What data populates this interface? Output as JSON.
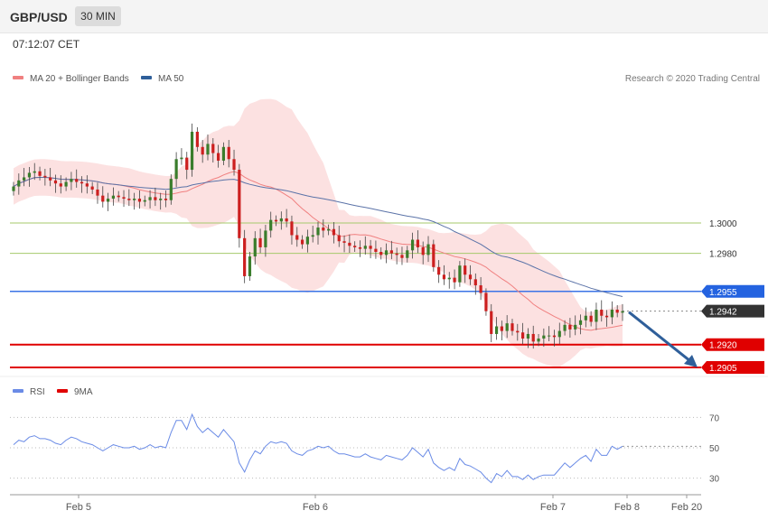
{
  "header": {
    "symbol": "GBP/USD",
    "timeframe": "30 MIN",
    "time": "07:12:07 CET"
  },
  "legend": {
    "ma20_label": "MA 20 + Bollinger Bands",
    "ma50_label": "MA 50",
    "credit": "Research © 2020 Trading Central",
    "rsi_label": "RSI",
    "ma9_label": "9MA"
  },
  "colors": {
    "up": "#3a7d2c",
    "down": "#cc1f1f",
    "band": "#fcdcdc",
    "ma20": "#f08080",
    "ma50": "#5b73a8",
    "support": "#e00000",
    "pivot": "#3b73e6",
    "resistance": "#a5c96b",
    "rsi": "#6a8be6",
    "arrow": "#2f5f9a"
  },
  "chart_data": {
    "type": "candlestick",
    "x_ticks": [
      "Feb 5",
      "Feb 6",
      "Feb 7",
      "Feb 8",
      "Feb 20"
    ],
    "y_range": [
      1.2897,
      1.304
    ],
    "levels": [
      {
        "value": 1.3,
        "label": "1.3000",
        "kind": "resistance"
      },
      {
        "value": 1.298,
        "label": "1.2980",
        "kind": "resistance"
      },
      {
        "value": 1.2955,
        "label": "1.2955",
        "kind": "pivot"
      },
      {
        "value": 1.2942,
        "label": "1.2942",
        "kind": "last"
      },
      {
        "value": 1.292,
        "label": "1.2920",
        "kind": "support"
      },
      {
        "value": 1.2905,
        "label": "1.2905",
        "kind": "support"
      }
    ],
    "close": [
      1.3024,
      1.3028,
      1.303,
      1.3033,
      1.3034,
      1.3031,
      1.303,
      1.3028,
      1.3026,
      1.3024,
      1.3027,
      1.3029,
      1.3027,
      1.3026,
      1.3024,
      1.3022,
      1.3018,
      1.3014,
      1.3016,
      1.3018,
      1.3017,
      1.3016,
      1.3015,
      1.3016,
      1.3014,
      1.3015,
      1.3017,
      1.3015,
      1.3016,
      1.3015,
      1.3029,
      1.3042,
      1.3043,
      1.3035,
      1.306,
      1.305,
      1.3045,
      1.3052,
      1.3046,
      1.3041,
      1.305,
      1.3042,
      1.3035,
      1.299,
      1.2965,
      1.2978,
      1.299,
      1.2984,
      1.2995,
      1.3002,
      1.3001,
      1.3003,
      1.3001,
      1.2992,
      1.2989,
      1.2986,
      1.2991,
      1.2992,
      1.2997,
      1.2995,
      1.2996,
      1.2992,
      1.2988,
      1.2987,
      1.2985,
      1.2984,
      1.2983,
      1.2985,
      1.2983,
      1.2981,
      1.2979,
      1.2982,
      1.298,
      1.2979,
      1.2977,
      1.2982,
      1.2989,
      1.2984,
      1.2979,
      1.2986,
      1.2971,
      1.2966,
      1.2963,
      1.2964,
      1.2961,
      1.2972,
      1.2966,
      1.2963,
      1.2959,
      1.2954,
      1.2942,
      1.2927,
      1.2932,
      1.2929,
      1.2934,
      1.2929,
      1.2928,
      1.2924,
      1.2927,
      1.2922,
      1.2924,
      1.2926,
      1.2926,
      1.2925,
      1.2929,
      1.2933,
      1.293,
      1.2933,
      1.2936,
      1.2939,
      1.2935,
      1.2943,
      1.2939,
      1.2938,
      1.2943,
      1.2941,
      1.2942
    ],
    "bands_note": "MA 20 with Bollinger Bands and MA 50 overlays",
    "rsi": {
      "levels": [
        70,
        50,
        30
      ],
      "values": [
        52,
        55,
        54,
        57,
        58,
        56,
        56,
        55,
        53,
        52,
        55,
        57,
        56,
        54,
        53,
        52,
        50,
        48,
        50,
        52,
        51,
        50,
        50,
        51,
        49,
        50,
        52,
        50,
        51,
        50,
        60,
        68,
        68,
        62,
        72,
        64,
        60,
        63,
        60,
        57,
        62,
        58,
        54,
        40,
        34,
        42,
        48,
        46,
        51,
        54,
        53,
        54,
        53,
        48,
        46,
        45,
        48,
        49,
        51,
        50,
        51,
        48,
        46,
        46,
        45,
        44,
        44,
        46,
        44,
        43,
        42,
        45,
        44,
        43,
        42,
        45,
        50,
        47,
        44,
        49,
        40,
        37,
        35,
        37,
        35,
        43,
        39,
        38,
        36,
        34,
        30,
        27,
        33,
        31,
        35,
        31,
        31,
        29,
        32,
        29,
        31,
        32,
        32,
        32,
        36,
        40,
        37,
        40,
        43,
        45,
        41,
        49,
        45,
        45,
        51,
        49,
        51
      ]
    }
  }
}
